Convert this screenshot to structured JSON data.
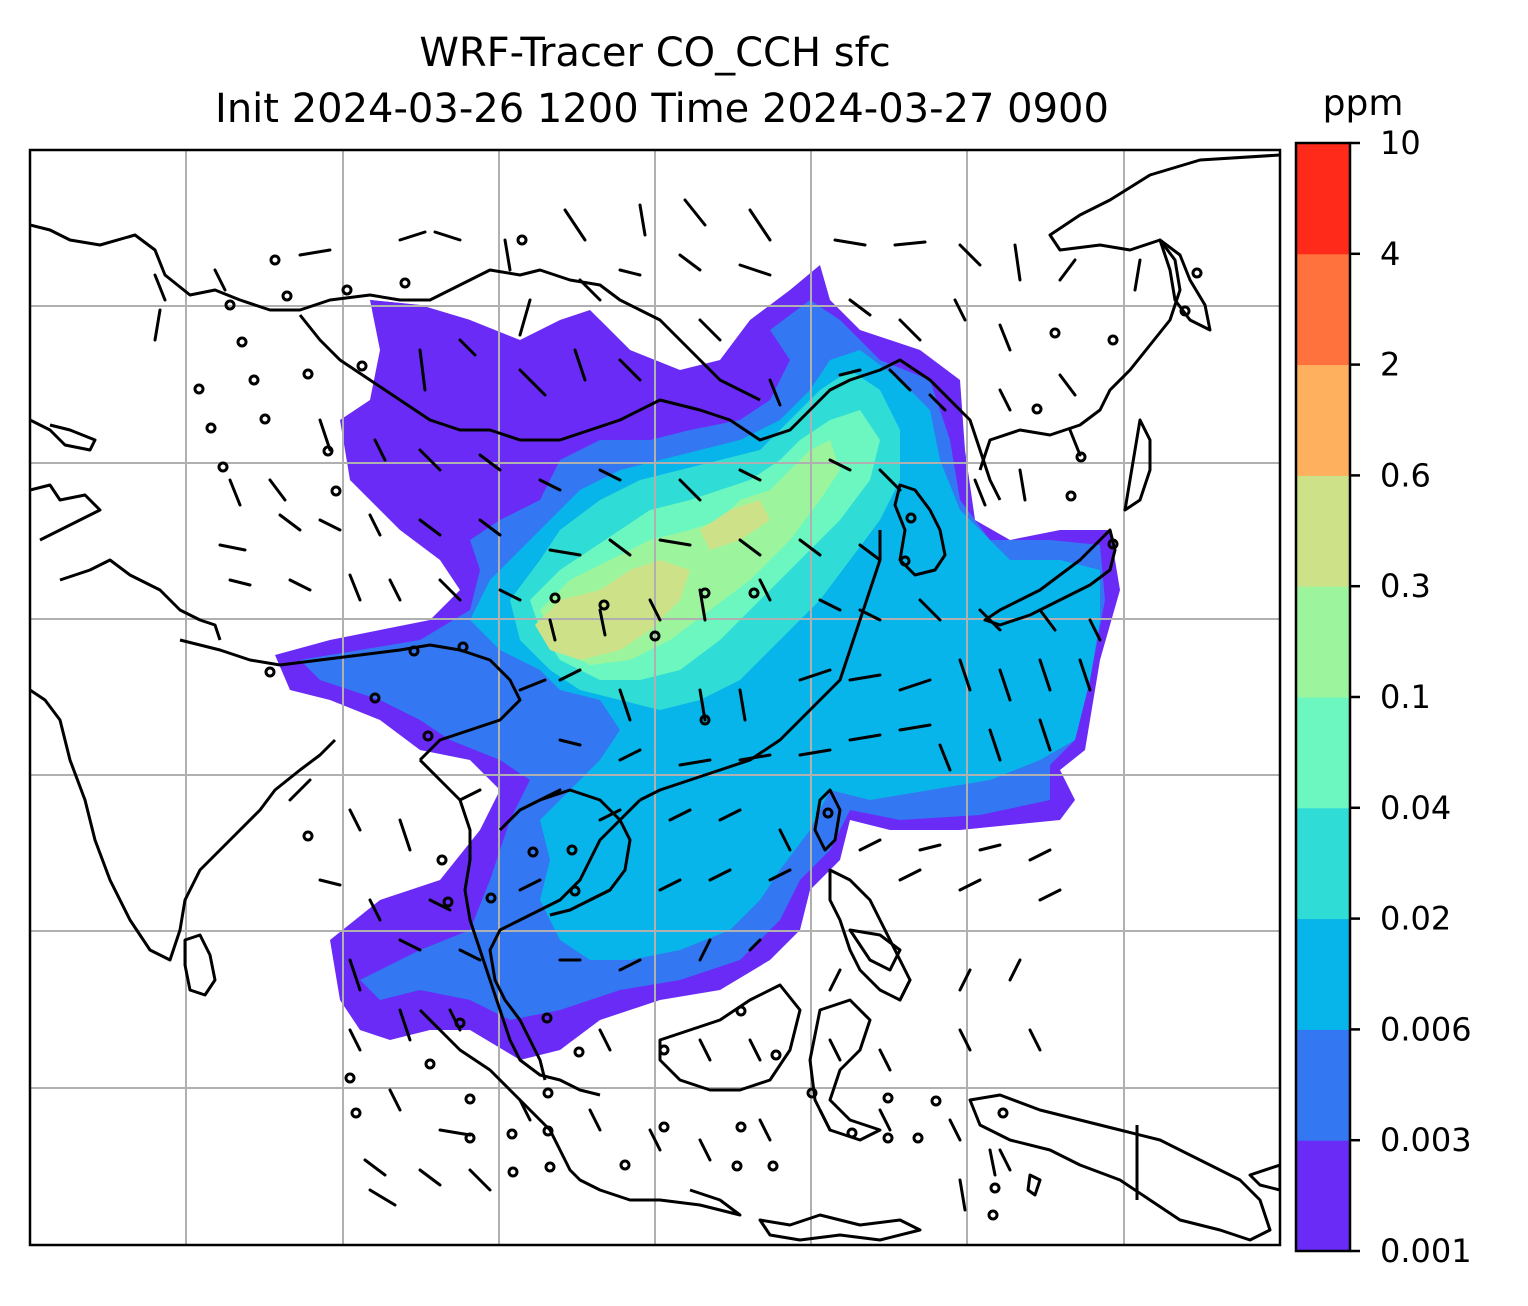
{
  "title": {
    "line1": "WRF-Tracer CO_CCH sfc",
    "line2": "Init 2024-03-26 1200 Time 2024-03-27 0900"
  },
  "colorbar": {
    "unit": "ppm",
    "ticks": [
      "0.001",
      "0.003",
      "0.006",
      "0.02",
      "0.04",
      "0.1",
      "0.3",
      "0.6",
      "2",
      "4",
      "10"
    ],
    "colors": [
      "#6a2bf6",
      "#3377f2",
      "#08b5ea",
      "#2fdcd6",
      "#6cf7c0",
      "#9cf59d",
      "#cde288",
      "#ffb05f",
      "#ff723e",
      "#ff2a19"
    ]
  },
  "map": {
    "field": "CO_CCH surface tracer concentration",
    "overlay": "wind barbs",
    "gridlines": true,
    "coastlines": true,
    "country_borders": true
  }
}
